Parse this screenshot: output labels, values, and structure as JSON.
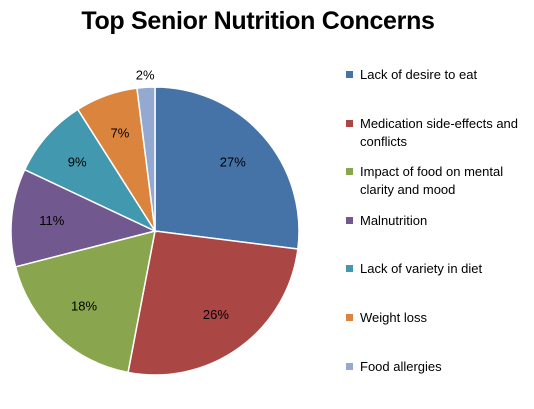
{
  "chart_data": {
    "type": "pie",
    "title": "Top Senior Nutrition Concerns",
    "categories": [
      "Lack of desire to eat",
      "Medication side-effects and conflicts",
      "Impact of food on mental clarity and mood",
      "Malnutrition",
      "Lack of variety in diet",
      "Weight loss",
      "Food allergies"
    ],
    "values": [
      27,
      26,
      18,
      11,
      9,
      7,
      2
    ],
    "data_labels": [
      "27%",
      "26%",
      "18%",
      "11%",
      "9%",
      "7%",
      "2%"
    ],
    "colors": [
      "#4572a7",
      "#aa4643",
      "#89a54e",
      "#71588f",
      "#4198af",
      "#db843d",
      "#93a9cf"
    ],
    "legend_position": "right"
  }
}
